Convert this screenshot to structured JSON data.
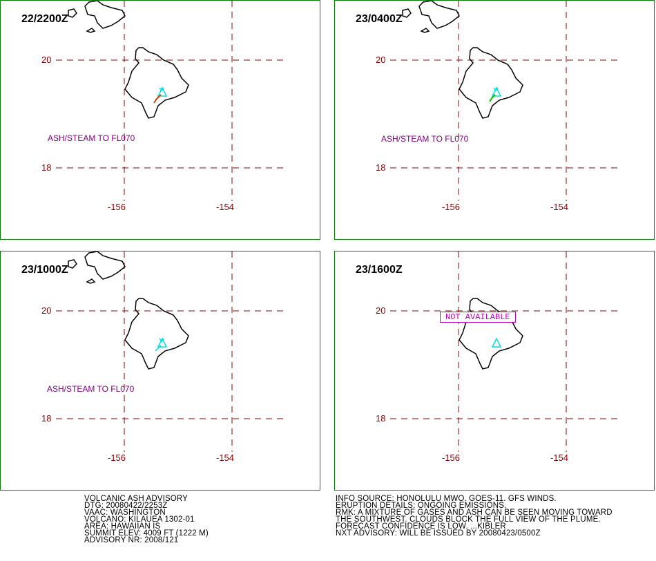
{
  "panels": [
    {
      "time": "22/2200Z",
      "ash_text": "ASH/STEAM TO FL070"
    },
    {
      "time": "23/0400Z",
      "ash_text": "ASH/STEAM TO FL070"
    },
    {
      "time": "23/1000Z",
      "ash_text": "ASH/STEAM TO FL070"
    },
    {
      "time": "23/1600Z",
      "status": "NOT AVAILABLE"
    }
  ],
  "axes": {
    "lat_20": "20",
    "lat_18": "18",
    "lon_156": "-156",
    "lon_154": "-154"
  },
  "advisory_left": [
    "VOLCANIC ASH ADVISORY",
    "DTG: 20080422/2253Z",
    "VAAC: WASHINGTON",
    "VOLCANO: KILAUEA 1302-01",
    "AREA: HAWAIIAN IS",
    "SUMMIT ELEV: 4009 FT (1222 M)",
    "ADVISORY NR: 2008/121"
  ],
  "advisory_right": [
    "INFO SOURCE: HONOLULU MWO. GOES-11. GFS WINDS.",
    "ERUPTION DETAILS: ONGOING EMISSIONS.",
    "RMK: A MIXTURE OF GASES AND ASH CAN BE SEEN MOVING TOWARD",
    "THE SOUTHWEST. CLOUDS BLOCK THE FULL VIEW OF THE PLUME.",
    "FORECAST CONFIDENCE IS LOW. ...KIBLER",
    "NXT ADVISORY: WILL BE ISSUED BY 20080423/0500Z"
  ],
  "colors": {
    "panel_border": "#008000",
    "gridline": "#8b0000",
    "coastline": "#000000",
    "volcano_symbol": "#00e0e0",
    "ash_text": "#800080",
    "not_available": "#c000c0"
  }
}
